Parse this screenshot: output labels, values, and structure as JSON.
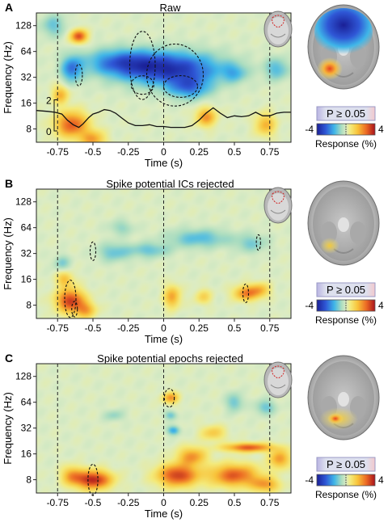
{
  "panels": [
    {
      "letter": "A",
      "title": "Raw",
      "show_trace": true,
      "trace_scale": {
        "top": "2",
        "bottom": "0"
      },
      "blobs": [
        {
          "t": -0.6,
          "f": 96,
          "st": 0.04,
          "sf": 0.18,
          "a": 0.8
        },
        {
          "t": -0.73,
          "f": 20,
          "st": 0.04,
          "sf": 0.25,
          "a": 0.45
        },
        {
          "t": -0.65,
          "f": 9,
          "st": 0.08,
          "sf": 0.35,
          "a": 0.75
        },
        {
          "t": -0.5,
          "f": 6,
          "st": 0.06,
          "sf": 0.25,
          "a": 0.5
        },
        {
          "t": 0.3,
          "f": 11,
          "st": 0.05,
          "sf": 0.25,
          "a": 0.55
        },
        {
          "t": 0.72,
          "f": 9,
          "st": 0.05,
          "sf": 0.3,
          "a": 0.45
        },
        {
          "t": -0.3,
          "f": 48,
          "st": 0.18,
          "sf": 0.35,
          "a": -0.55
        },
        {
          "t": 0.05,
          "f": 40,
          "st": 0.25,
          "sf": 0.45,
          "a": -0.85
        },
        {
          "t": 0.18,
          "f": 24,
          "st": 0.1,
          "sf": 0.3,
          "a": -0.5
        },
        {
          "t": -0.65,
          "f": 40,
          "st": 0.05,
          "sf": 0.35,
          "a": -0.55
        },
        {
          "t": 0.5,
          "f": 36,
          "st": 0.06,
          "sf": 0.25,
          "a": -0.3
        },
        {
          "t": 0.8,
          "f": 40,
          "st": 0.06,
          "sf": 0.3,
          "a": -0.35
        },
        {
          "t": -0.78,
          "f": 128,
          "st": 0.06,
          "sf": 0.3,
          "a": -0.3
        }
      ],
      "contours": [
        {
          "t": -0.6,
          "f": 34,
          "rt": 0.025,
          "rf": 0.07
        },
        {
          "t": -0.15,
          "f": 44,
          "rt": 0.09,
          "rf": 0.22
        },
        {
          "t": 0.08,
          "f": 34,
          "rt": 0.2,
          "rf": 0.2
        },
        {
          "t": -0.15,
          "f": 26,
          "rt": 0.08,
          "rf": 0.06
        },
        {
          "t": 0.12,
          "f": 25,
          "rt": 0.12,
          "rf": 0.07
        }
      ],
      "brain": "raw",
      "p_label": "P ≥ 0.05"
    },
    {
      "letter": "B",
      "title": "Spike potential ICs rejected",
      "show_trace": false,
      "blobs": [
        {
          "t": -0.66,
          "f": 9,
          "st": 0.07,
          "sf": 0.32,
          "a": 0.85
        },
        {
          "t": -0.55,
          "f": 7,
          "st": 0.05,
          "sf": 0.22,
          "a": 0.45
        },
        {
          "t": 0.06,
          "f": 10,
          "st": 0.04,
          "sf": 0.3,
          "a": 0.5
        },
        {
          "t": 0.58,
          "f": 11,
          "st": 0.06,
          "sf": 0.2,
          "a": 0.6
        },
        {
          "t": 0.68,
          "f": 12,
          "st": 0.05,
          "sf": 0.2,
          "a": 0.4
        },
        {
          "t": -0.7,
          "f": 16,
          "st": 0.04,
          "sf": 0.2,
          "a": 0.4
        },
        {
          "t": 0.28,
          "f": 10,
          "st": 0.04,
          "sf": 0.2,
          "a": 0.3
        },
        {
          "t": -0.35,
          "f": 33,
          "st": 0.08,
          "sf": 0.25,
          "a": -0.3
        },
        {
          "t": -0.1,
          "f": 35,
          "st": 0.1,
          "sf": 0.2,
          "a": -0.3
        },
        {
          "t": 0.25,
          "f": 48,
          "st": 0.15,
          "sf": 0.25,
          "a": -0.35
        },
        {
          "t": 0.62,
          "f": 42,
          "st": 0.08,
          "sf": 0.25,
          "a": -0.25
        },
        {
          "t": -0.3,
          "f": 64,
          "st": 0.06,
          "sf": 0.2,
          "a": -0.2
        },
        {
          "t": -0.72,
          "f": 25,
          "st": 0.04,
          "sf": 0.2,
          "a": -0.25
        }
      ],
      "contours": [
        {
          "t": -0.66,
          "f": 9.5,
          "rt": 0.04,
          "rf": 0.12
        },
        {
          "t": -0.63,
          "f": 7.2,
          "rt": 0.02,
          "rf": 0.05
        },
        {
          "t": 0.58,
          "f": 11,
          "rt": 0.02,
          "rf": 0.06
        },
        {
          "t": -0.5,
          "f": 34,
          "rt": 0.02,
          "rf": 0.06
        },
        {
          "t": 0.67,
          "f": 43,
          "rt": 0.015,
          "rf": 0.05
        }
      ],
      "brain": "b",
      "p_label": "P ≥ 0.05"
    },
    {
      "letter": "C",
      "title": "Spike potential epochs rejected",
      "show_trace": false,
      "blobs": [
        {
          "t": -0.5,
          "f": 8,
          "st": 0.09,
          "sf": 0.25,
          "a": 0.95
        },
        {
          "t": -0.65,
          "f": 9,
          "st": 0.05,
          "sf": 0.25,
          "a": 0.45
        },
        {
          "t": 0.1,
          "f": 9,
          "st": 0.1,
          "sf": 0.3,
          "a": 0.85
        },
        {
          "t": 0.2,
          "f": 15,
          "st": 0.07,
          "sf": 0.25,
          "a": 0.55
        },
        {
          "t": 0.6,
          "f": 19,
          "st": 0.12,
          "sf": 0.12,
          "a": 0.75
        },
        {
          "t": 0.5,
          "f": 9,
          "st": 0.12,
          "sf": 0.3,
          "a": 0.75
        },
        {
          "t": 0.82,
          "f": 14,
          "st": 0.05,
          "sf": 0.25,
          "a": 0.55
        },
        {
          "t": 0.72,
          "f": 7,
          "st": 0.07,
          "sf": 0.2,
          "a": 0.5
        },
        {
          "t": 0.35,
          "f": 28,
          "st": 0.06,
          "sf": 0.2,
          "a": 0.35
        },
        {
          "t": 0.05,
          "f": 72,
          "st": 0.04,
          "sf": 0.15,
          "a": 0.55
        },
        {
          "t": 0.07,
          "f": 30,
          "st": 0.03,
          "sf": 0.12,
          "a": -0.45
        },
        {
          "t": 0.05,
          "f": 45,
          "st": 0.03,
          "sf": 0.12,
          "a": -0.3
        },
        {
          "t": 0.5,
          "f": 64,
          "st": 0.04,
          "sf": 0.25,
          "a": -0.3
        },
        {
          "t": 0.72,
          "f": 56,
          "st": 0.05,
          "sf": 0.2,
          "a": -0.3
        },
        {
          "t": -0.35,
          "f": 45,
          "st": 0.05,
          "sf": 0.15,
          "a": -0.2
        }
      ],
      "contours": [
        {
          "t": -0.5,
          "f": 8,
          "rt": 0.035,
          "rf": 0.1
        },
        {
          "t": 0.04,
          "f": 72,
          "rt": 0.035,
          "rf": 0.06
        }
      ],
      "brain": "c",
      "p_label": "P ≥ 0.05"
    }
  ],
  "axes": {
    "xlabel": "Time (s)",
    "ylabel": "Frequency (Hz)",
    "xticks": [
      "-0.75",
      "-0.5",
      "-0.25",
      "0",
      "0.25",
      "0.5",
      "0.75"
    ],
    "yticks": [
      "8",
      "16",
      "32",
      "64",
      "128"
    ]
  },
  "colorbar": {
    "min_label": "-4",
    "max_label": "4",
    "label": "Response (%)"
  },
  "colors": {
    "p_box_bg": "#dde0ee",
    "p_box_edge_left": "#b9b4e2",
    "p_box_edge_right": "#f3c9cc",
    "trace": "#111111",
    "contour": "#111111",
    "marker_line": "#222222"
  },
  "chart_data": [
    {
      "type": "heatmap",
      "title": "Raw",
      "xlabel": "Time (s)",
      "ylabel": "Frequency (Hz)",
      "x_range": [
        -0.9,
        0.9
      ],
      "y_range": [
        5.6,
        180
      ],
      "y_scale": "log2",
      "x_ticks": [
        -0.75,
        -0.5,
        -0.25,
        0,
        0.25,
        0.5,
        0.75
      ],
      "y_ticks": [
        8,
        16,
        32,
        64,
        128
      ],
      "vertical_markers": [
        -0.75,
        0,
        0.75
      ],
      "color_range": [
        -4,
        4
      ],
      "overlay_trace": {
        "scale_range": [
          0,
          2
        ],
        "t": [
          -0.9,
          -0.82,
          -0.77,
          -0.72,
          -0.68,
          -0.64,
          -0.6,
          -0.57,
          -0.53,
          -0.5,
          -0.46,
          -0.42,
          -0.38,
          -0.34,
          -0.3,
          -0.25,
          -0.2,
          -0.15,
          -0.1,
          -0.05,
          0,
          0.05,
          0.1,
          0.15,
          0.2,
          0.25,
          0.3,
          0.35,
          0.4,
          0.45,
          0.5,
          0.55,
          0.6,
          0.65,
          0.7,
          0.75,
          0.8,
          0.85,
          0.9
        ],
        "v": [
          1.15,
          1.1,
          1.05,
          0.95,
          0.6,
          0.35,
          0.2,
          0.4,
          0.75,
          0.95,
          1.05,
          1.2,
          1.15,
          1.0,
          0.75,
          0.45,
          0.3,
          0.3,
          0.35,
          0.25,
          0.25,
          0.2,
          0.2,
          0.2,
          0.3,
          0.6,
          1.0,
          1.3,
          1.0,
          0.75,
          0.85,
          0.8,
          0.85,
          1.05,
          0.85,
          0.85,
          1.0,
          1.05,
          1.05
        ]
      }
    },
    {
      "type": "heatmap",
      "title": "Spike potential ICs rejected",
      "xlabel": "Time (s)",
      "ylabel": "Frequency (Hz)",
      "x_range": [
        -0.9,
        0.9
      ],
      "y_range": [
        5.6,
        180
      ],
      "y_scale": "log2",
      "x_ticks": [
        -0.75,
        -0.5,
        -0.25,
        0,
        0.25,
        0.5,
        0.75
      ],
      "y_ticks": [
        8,
        16,
        32,
        64,
        128
      ],
      "vertical_markers": [
        -0.75,
        0,
        0.75
      ],
      "color_range": [
        -4,
        4
      ]
    },
    {
      "type": "heatmap",
      "title": "Spike potential epochs rejected",
      "xlabel": "Time (s)",
      "ylabel": "Frequency (Hz)",
      "x_range": [
        -0.9,
        0.9
      ],
      "y_range": [
        5.6,
        180
      ],
      "y_scale": "log2",
      "x_ticks": [
        -0.75,
        -0.5,
        -0.25,
        0,
        0.25,
        0.5,
        0.75
      ],
      "y_ticks": [
        8,
        16,
        32,
        64,
        128
      ],
      "vertical_markers": [
        -0.75,
        0,
        0.75
      ],
      "color_range": [
        -4,
        4
      ]
    }
  ]
}
